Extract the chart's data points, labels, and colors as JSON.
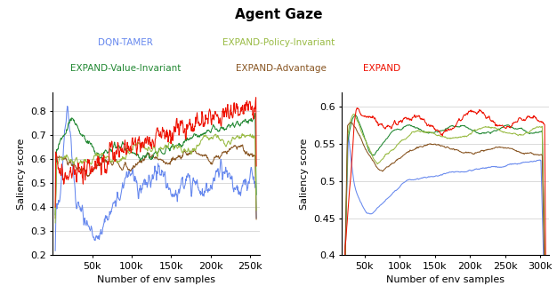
{
  "title": "Agent Gaze",
  "xlabel": "Number of env samples",
  "ylabel": "Saliency score",
  "colors": {
    "DQN-TAMER": "#6688ee",
    "EXPAND-Policy-Invariant": "#99bb44",
    "EXPAND-Value-Invariant": "#228833",
    "EXPAND-Advantage": "#885522",
    "EXPAND": "#ee1100"
  },
  "left_xlim": [
    0,
    262000
  ],
  "left_ylim": [
    0.2,
    0.88
  ],
  "left_yticks": [
    0.2,
    0.3,
    0.4,
    0.5,
    0.6,
    0.7,
    0.8
  ],
  "left_xticks": [
    50000,
    100000,
    150000,
    200000,
    250000
  ],
  "left_xticklabels": [
    "50k",
    "100k",
    "150k",
    "200k",
    "250k"
  ],
  "right_xlim": [
    18000,
    312000
  ],
  "right_ylim": [
    0.4,
    0.62
  ],
  "right_yticks": [
    0.4,
    0.45,
    0.5,
    0.55,
    0.6
  ],
  "right_xticks": [
    50000,
    100000,
    150000,
    200000,
    250000,
    300000
  ],
  "right_xticklabels": [
    "50k",
    "100k",
    "150k",
    "200k",
    "250k",
    "300k"
  ],
  "legend_row1": [
    "DQN-TAMER",
    "EXPAND-Policy-Invariant"
  ],
  "legend_row2": [
    "EXPAND-Value-Invariant",
    "EXPAND-Advantage",
    "EXPAND"
  ]
}
